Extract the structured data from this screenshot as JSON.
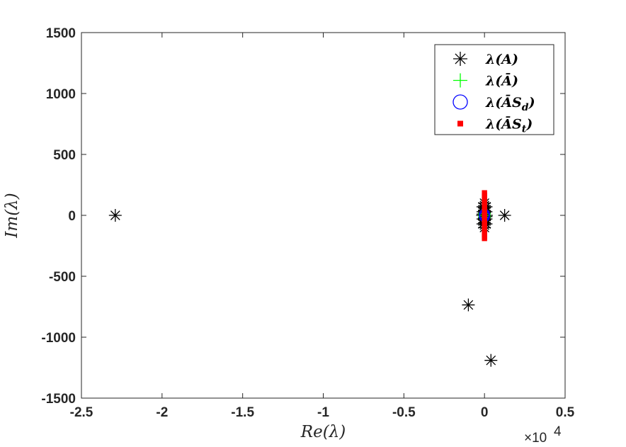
{
  "chart_data": {
    "type": "scatter",
    "xlabel": "Re(λ)",
    "ylabel": "Im(λ)",
    "x_exponent_label": "×10",
    "x_exponent_power": "4",
    "xlim": [
      -2.5,
      0.5
    ],
    "ylim": [
      -1500,
      1500
    ],
    "x_scale_note": "x values in units of 10^4",
    "x_ticks": [
      {
        "value": -2.5,
        "label": "-2.5"
      },
      {
        "value": -2,
        "label": "-2"
      },
      {
        "value": -1.5,
        "label": "-1.5"
      },
      {
        "value": -1,
        "label": "-1"
      },
      {
        "value": -0.5,
        "label": "-0.5"
      },
      {
        "value": 0,
        "label": "0"
      },
      {
        "value": 0.5,
        "label": "0.5"
      }
    ],
    "y_ticks": [
      {
        "value": 1500,
        "label": "1500"
      },
      {
        "value": 1000,
        "label": "1000"
      },
      {
        "value": 500,
        "label": "500"
      },
      {
        "value": 0,
        "label": "0"
      },
      {
        "value": -500,
        "label": "-500"
      },
      {
        "value": -1000,
        "label": "-1000"
      },
      {
        "value": -1500,
        "label": "-1500"
      }
    ],
    "grid": false,
    "legend_position": "top-right",
    "series": [
      {
        "name": "λ(A)",
        "legend_main": "λ(A)",
        "marker": "asterisk",
        "color": "#000000",
        "points": [
          {
            "x": -2.29,
            "y": 0
          },
          {
            "x": 0.125,
            "y": 0
          },
          {
            "x": -0.1,
            "y": -735
          },
          {
            "x": 0.04,
            "y": -1190
          },
          {
            "x": 0.0,
            "y": 100
          },
          {
            "x": 0.0,
            "y": 80
          },
          {
            "x": 0.0,
            "y": 60
          },
          {
            "x": 0.0,
            "y": 40
          },
          {
            "x": 0.0,
            "y": 20
          },
          {
            "x": 0.0,
            "y": 0
          },
          {
            "x": 0.0,
            "y": -20
          },
          {
            "x": 0.0,
            "y": -40
          },
          {
            "x": 0.0,
            "y": -60
          },
          {
            "x": 0.0,
            "y": -80
          },
          {
            "x": 0.0,
            "y": -100
          },
          {
            "x": -0.01,
            "y": 70
          },
          {
            "x": 0.01,
            "y": 70
          },
          {
            "x": -0.01,
            "y": 30
          },
          {
            "x": 0.01,
            "y": 30
          },
          {
            "x": -0.01,
            "y": -30
          },
          {
            "x": 0.01,
            "y": -30
          },
          {
            "x": -0.01,
            "y": -70
          },
          {
            "x": 0.01,
            "y": -70
          },
          {
            "x": -0.012,
            "y": 0
          },
          {
            "x": 0.012,
            "y": 0
          },
          {
            "x": -0.01,
            "y": 10
          },
          {
            "x": 0.01,
            "y": -10
          }
        ]
      },
      {
        "name": "λ(Ā)",
        "legend_main": "λ(Ā)",
        "marker": "plus",
        "color": "#00ff00",
        "points": [
          {
            "x": 0.0,
            "y": 0
          },
          {
            "x": 0.0,
            "y": 15
          },
          {
            "x": 0.0,
            "y": -15
          }
        ]
      },
      {
        "name": "λ(ĀSd)",
        "legend_main": "λ(ĀS",
        "legend_sub": "d",
        "marker": "circle",
        "color": "#0000ff",
        "points": [
          {
            "x": 0.0,
            "y": 10
          },
          {
            "x": 0.0,
            "y": -10
          },
          {
            "x": 0.0,
            "y": 0
          }
        ]
      },
      {
        "name": "λ(ĀSt)",
        "legend_main": "λ(ĀS",
        "legend_sub": "t",
        "marker": "square",
        "color": "#ff0000",
        "points": [
          {
            "x": 0.0,
            "y": 185
          },
          {
            "x": 0.0,
            "y": 165
          },
          {
            "x": 0.0,
            "y": 145
          },
          {
            "x": 0.0,
            "y": 125
          },
          {
            "x": 0.0,
            "y": 105
          },
          {
            "x": 0.0,
            "y": 85
          },
          {
            "x": 0.0,
            "y": 65
          },
          {
            "x": 0.0,
            "y": 45
          },
          {
            "x": 0.0,
            "y": 25
          },
          {
            "x": 0.0,
            "y": 5
          },
          {
            "x": 0.0,
            "y": -15
          },
          {
            "x": 0.0,
            "y": -35
          },
          {
            "x": 0.0,
            "y": -55
          },
          {
            "x": 0.0,
            "y": -75
          },
          {
            "x": 0.0,
            "y": -95
          },
          {
            "x": 0.0,
            "y": -115
          },
          {
            "x": 0.0,
            "y": -135
          },
          {
            "x": 0.0,
            "y": -155
          },
          {
            "x": 0.0,
            "y": -175
          },
          {
            "x": 0.0,
            "y": -190
          }
        ]
      }
    ]
  }
}
